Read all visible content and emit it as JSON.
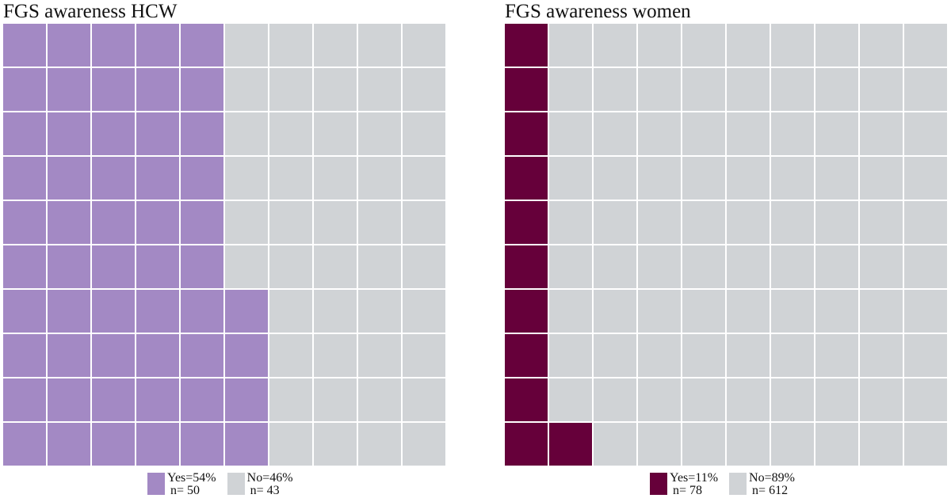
{
  "chart_data": [
    {
      "type": "waffle",
      "title": "FGS awareness HCW",
      "grid": [
        10,
        10
      ],
      "categories": [
        {
          "label": "Yes=54%",
          "n_label": "n= 50",
          "percent": 54,
          "n": 50,
          "color": "#a389c4"
        },
        {
          "label": "No=46%",
          "n_label": "n= 43",
          "percent": 46,
          "n": 43,
          "color": "#d0d3d6"
        }
      ],
      "legend": "bottom"
    },
    {
      "type": "waffle",
      "title": "FGS awareness women",
      "grid": [
        10,
        10
      ],
      "categories": [
        {
          "label": "Yes=11%",
          "n_label": "n= 78",
          "percent": 11,
          "n": 78,
          "color": "#66003a"
        },
        {
          "label": "No=89%",
          "n_label": "n= 612",
          "percent": 89,
          "n": 612,
          "color": "#d0d3d6"
        }
      ],
      "legend": "bottom"
    }
  ]
}
